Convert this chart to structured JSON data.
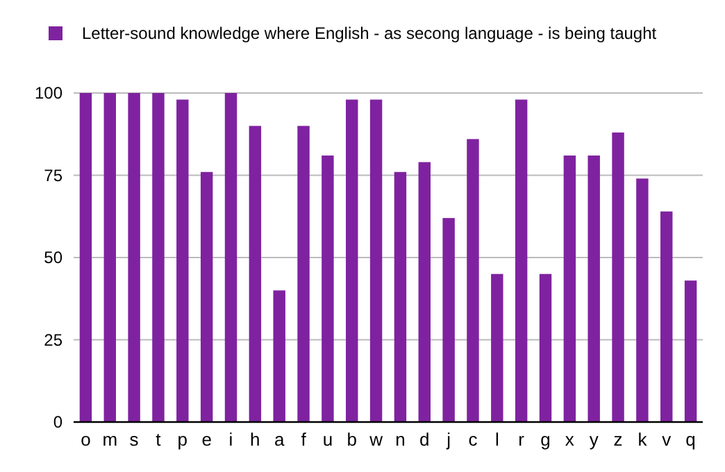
{
  "chart_data": {
    "type": "bar",
    "categories": [
      "o",
      "m",
      "s",
      "t",
      "p",
      "e",
      "i",
      "h",
      "a",
      "f",
      "u",
      "b",
      "w",
      "n",
      "d",
      "j",
      "c",
      "l",
      "r",
      "g",
      "x",
      "y",
      "z",
      "k",
      "v",
      "q"
    ],
    "series": [
      {
        "name": "Letter-sound knowledge where English - as secong language - is being taught",
        "color": "#7f22a0",
        "values": [
          100,
          100,
          100,
          100,
          98,
          76,
          100,
          90,
          40,
          90,
          81,
          98,
          98,
          76,
          79,
          62,
          86,
          45,
          98,
          45,
          81,
          81,
          88,
          74,
          64,
          43
        ]
      }
    ],
    "ylim": [
      0,
      100
    ],
    "yticks": [
      0,
      25,
      50,
      75,
      100
    ],
    "grid": "y",
    "legend": "top left"
  }
}
